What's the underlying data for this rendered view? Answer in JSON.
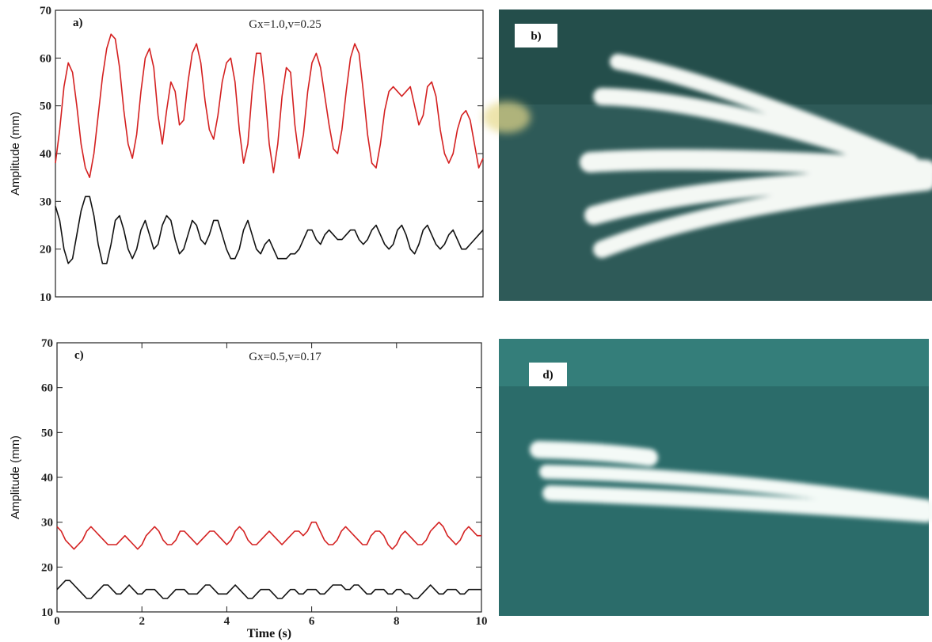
{
  "chart_data": [
    {
      "type": "line",
      "label": "a)",
      "annotation": "Gx=1.0,v=0.25",
      "y_label": "Amplitude (mm)",
      "x": [
        0,
        0.1,
        0.2,
        0.3,
        0.4,
        0.5,
        0.6,
        0.7,
        0.8,
        0.9,
        1,
        1.1,
        1.2,
        1.3,
        1.4,
        1.5,
        1.6,
        1.7,
        1.8,
        1.9,
        2,
        2.1,
        2.2,
        2.3,
        2.4,
        2.5,
        2.6,
        2.7,
        2.8,
        2.9,
        3,
        3.1,
        3.2,
        3.3,
        3.4,
        3.5,
        3.6,
        3.7,
        3.8,
        3.9,
        4,
        4.1,
        4.2,
        4.3,
        4.4,
        4.5,
        4.6,
        4.7,
        4.8,
        4.9,
        5,
        5.1,
        5.2,
        5.3,
        5.4,
        5.5,
        5.6,
        5.7,
        5.8,
        5.9,
        6,
        6.1,
        6.2,
        6.3,
        6.4,
        6.5,
        6.6,
        6.7,
        6.8,
        6.9,
        7,
        7.1,
        7.2,
        7.3,
        7.4,
        7.5,
        7.6,
        7.7,
        7.8,
        7.9,
        8,
        8.1,
        8.2,
        8.3,
        8.4,
        8.5,
        8.6,
        8.7,
        8.8,
        8.9,
        9,
        9.1,
        9.2,
        9.3,
        9.4,
        9.5,
        9.6,
        9.7,
        9.8,
        9.9,
        10
      ],
      "series": [
        {
          "color": "#d42020",
          "values": [
            38,
            45,
            54,
            59,
            57,
            50,
            42,
            37,
            35,
            40,
            48,
            56,
            62,
            65,
            64,
            58,
            49,
            42,
            39,
            44,
            53,
            60,
            62,
            58,
            48,
            42,
            49,
            55,
            53,
            46,
            47,
            55,
            61,
            63,
            59,
            51,
            45,
            43,
            48,
            55,
            59,
            60,
            55,
            45,
            38,
            42,
            53,
            61,
            61,
            53,
            42,
            36,
            42,
            52,
            58,
            57,
            46,
            39,
            44,
            53,
            59,
            61,
            58,
            52,
            46,
            41,
            40,
            45,
            53,
            60,
            63,
            61,
            53,
            44,
            38,
            37,
            42,
            49,
            53,
            54,
            53,
            52,
            53,
            54,
            50,
            46,
            48,
            54,
            55,
            52,
            45,
            40,
            38,
            40,
            45,
            48,
            49,
            47,
            42,
            37,
            39
          ]
        },
        {
          "color": "#111111",
          "values": [
            29,
            26,
            20,
            17,
            18,
            23,
            28,
            31,
            31,
            27,
            21,
            17,
            17,
            21,
            26,
            27,
            24,
            20,
            18,
            20,
            24,
            26,
            23,
            20,
            21,
            25,
            27,
            26,
            22,
            19,
            20,
            23,
            26,
            25,
            22,
            21,
            23,
            26,
            26,
            23,
            20,
            18,
            18,
            20,
            24,
            26,
            23,
            20,
            19,
            21,
            22,
            20,
            18,
            18,
            18,
            19,
            19,
            20,
            22,
            24,
            24,
            22,
            21,
            23,
            24,
            23,
            22,
            22,
            23,
            24,
            24,
            22,
            21,
            22,
            24,
            25,
            23,
            21,
            20,
            21,
            24,
            25,
            23,
            20,
            19,
            21,
            24,
            25,
            23,
            21,
            20,
            21,
            23,
            24,
            22,
            20,
            20,
            21,
            22,
            23,
            24
          ]
        }
      ],
      "xlim": [
        0,
        10
      ],
      "ylim": [
        10,
        70
      ],
      "yticks": [
        10,
        20,
        30,
        40,
        50,
        60,
        70
      ]
    },
    {
      "type": "line",
      "label": "c)",
      "annotation": "Gx=0.5,v=0.17",
      "y_label": "Amplitude (mm)",
      "x_label": "Time (s)",
      "x": [
        0,
        0.1,
        0.2,
        0.3,
        0.4,
        0.5,
        0.6,
        0.7,
        0.8,
        0.9,
        1,
        1.1,
        1.2,
        1.3,
        1.4,
        1.5,
        1.6,
        1.7,
        1.8,
        1.9,
        2,
        2.1,
        2.2,
        2.3,
        2.4,
        2.5,
        2.6,
        2.7,
        2.8,
        2.9,
        3,
        3.1,
        3.2,
        3.3,
        3.4,
        3.5,
        3.6,
        3.7,
        3.8,
        3.9,
        4,
        4.1,
        4.2,
        4.3,
        4.4,
        4.5,
        4.6,
        4.7,
        4.8,
        4.9,
        5,
        5.1,
        5.2,
        5.3,
        5.4,
        5.5,
        5.6,
        5.7,
        5.8,
        5.9,
        6,
        6.1,
        6.2,
        6.3,
        6.4,
        6.5,
        6.6,
        6.7,
        6.8,
        6.9,
        7,
        7.1,
        7.2,
        7.3,
        7.4,
        7.5,
        7.6,
        7.7,
        7.8,
        7.9,
        8,
        8.1,
        8.2,
        8.3,
        8.4,
        8.5,
        8.6,
        8.7,
        8.8,
        8.9,
        9,
        9.1,
        9.2,
        9.3,
        9.4,
        9.5,
        9.6,
        9.7,
        9.8,
        9.9,
        10
      ],
      "series": [
        {
          "color": "#d42020",
          "values": [
            29,
            28,
            26,
            25,
            24,
            25,
            26,
            28,
            29,
            28,
            27,
            26,
            25,
            25,
            25,
            26,
            27,
            26,
            25,
            24,
            25,
            27,
            28,
            29,
            28,
            26,
            25,
            25,
            26,
            28,
            28,
            27,
            26,
            25,
            26,
            27,
            28,
            28,
            27,
            26,
            25,
            26,
            28,
            29,
            28,
            26,
            25,
            25,
            26,
            27,
            28,
            27,
            26,
            25,
            26,
            27,
            28,
            28,
            27,
            28,
            30,
            30,
            28,
            26,
            25,
            25,
            26,
            28,
            29,
            28,
            27,
            26,
            25,
            25,
            27,
            28,
            28,
            27,
            25,
            24,
            25,
            27,
            28,
            27,
            26,
            25,
            25,
            26,
            28,
            29,
            30,
            29,
            27,
            26,
            25,
            26,
            28,
            29,
            28,
            27,
            27
          ]
        },
        {
          "color": "#111111",
          "values": [
            15,
            16,
            17,
            17,
            16,
            15,
            14,
            13,
            13,
            14,
            15,
            16,
            16,
            15,
            14,
            14,
            15,
            16,
            15,
            14,
            14,
            15,
            15,
            15,
            14,
            13,
            13,
            14,
            15,
            15,
            15,
            14,
            14,
            14,
            15,
            16,
            16,
            15,
            14,
            14,
            14,
            15,
            16,
            15,
            14,
            13,
            13,
            14,
            15,
            15,
            15,
            14,
            13,
            13,
            14,
            15,
            15,
            14,
            14,
            15,
            15,
            15,
            14,
            14,
            15,
            16,
            16,
            16,
            15,
            15,
            16,
            16,
            15,
            14,
            14,
            15,
            15,
            15,
            14,
            14,
            15,
            15,
            14,
            14,
            13,
            13,
            14,
            15,
            16,
            15,
            14,
            14,
            15,
            15,
            15,
            14,
            14,
            15,
            15,
            15,
            15
          ]
        }
      ],
      "xlim": [
        0,
        10
      ],
      "ylim": [
        10,
        70
      ],
      "xticks": [
        0,
        2,
        4,
        6,
        8,
        10
      ],
      "yticks": [
        10,
        20,
        30,
        40,
        50,
        60,
        70
      ]
    }
  ],
  "photos": [
    {
      "label": "b)"
    },
    {
      "label": "d)"
    }
  ]
}
